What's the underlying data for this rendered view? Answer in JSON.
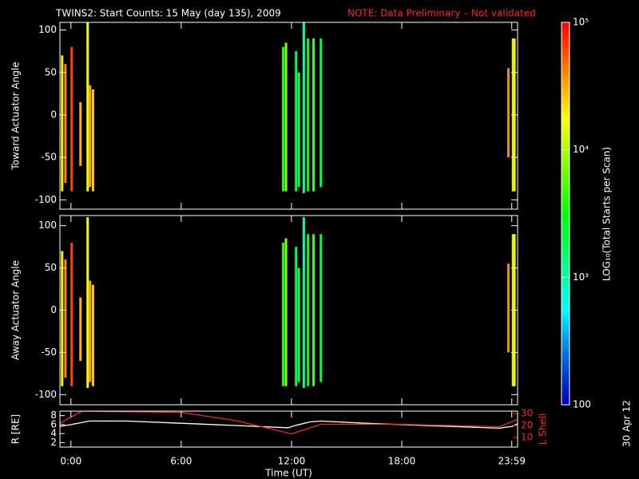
{
  "title": "TWINS2: Start Counts: 15 May (day 135), 2009",
  "note": "NOTE: Data Preliminary – Not validated",
  "date_stamp": "30 Apr 12",
  "colorbar": {
    "label": "LOG₁₀(Total Starts per Scan)",
    "log": true,
    "lim": [
      100,
      100000
    ],
    "ticks": [
      {
        "value": 100,
        "label": "100"
      },
      {
        "value": 1000,
        "label": "10³"
      },
      {
        "value": 10000,
        "label": "10⁴"
      },
      {
        "value": 100000,
        "label": "10⁵"
      }
    ]
  },
  "chart_data": [
    {
      "type": "spectrogram",
      "ylabel": "Toward Actuator Angle",
      "ylim": [
        -111,
        109
      ],
      "yticks": [
        -100,
        -50,
        0,
        50,
        100
      ],
      "streaks": [
        {
          "x": -0.48,
          "y": [
            -90,
            70
          ],
          "value": 20000
        },
        {
          "x": -0.3,
          "y": [
            -80,
            60
          ],
          "value": 40000
        },
        {
          "x": 0.04,
          "y": [
            -90,
            80
          ],
          "value": 63000
        },
        {
          "x": 0.52,
          "y": [
            -60,
            15
          ],
          "value": 30000
        },
        {
          "x": 0.91,
          "y": [
            -90,
            110
          ],
          "value": 16000
        },
        {
          "x": 1.04,
          "y": [
            -85,
            35
          ],
          "value": 32000
        },
        {
          "x": 1.2,
          "y": [
            -90,
            30
          ],
          "value": 25000
        },
        {
          "x": 11.55,
          "y": [
            -90,
            80
          ],
          "value": 4000
        },
        {
          "x": 11.7,
          "y": [
            -90,
            85
          ],
          "value": 8000
        },
        {
          "x": 12.25,
          "y": [
            -90,
            75
          ],
          "value": 2000
        },
        {
          "x": 12.4,
          "y": [
            -85,
            50
          ],
          "value": 1600
        },
        {
          "x": 12.67,
          "y": [
            -92,
            110
          ],
          "value": 1000
        },
        {
          "x": 12.9,
          "y": [
            -90,
            90
          ],
          "value": 2500
        },
        {
          "x": 13.2,
          "y": [
            -90,
            90
          ],
          "value": 5000
        },
        {
          "x": 13.6,
          "y": [
            -85,
            90
          ],
          "value": 2000
        },
        {
          "x": 23.8,
          "y": [
            -50,
            55
          ],
          "value": 40000
        },
        {
          "x": 24.05,
          "y": [
            -90,
            90
          ],
          "value": 12000
        },
        {
          "x": 24.13,
          "y": [
            -90,
            90
          ],
          "value": 20000
        }
      ]
    },
    {
      "type": "spectrogram",
      "ylabel": "Away Actuator Angle",
      "ylim": [
        -112,
        112
      ],
      "yticks": [
        -100,
        -50,
        0,
        50,
        100
      ],
      "streaks": [
        {
          "x": -0.48,
          "y": [
            -90,
            70
          ],
          "value": 20000
        },
        {
          "x": -0.3,
          "y": [
            -80,
            60
          ],
          "value": 40000
        },
        {
          "x": 0.04,
          "y": [
            -90,
            80
          ],
          "value": 63000
        },
        {
          "x": 0.52,
          "y": [
            -60,
            15
          ],
          "value": 30000
        },
        {
          "x": 0.91,
          "y": [
            -92,
            110
          ],
          "value": 16000
        },
        {
          "x": 1.04,
          "y": [
            -85,
            35
          ],
          "value": 32000
        },
        {
          "x": 1.2,
          "y": [
            -90,
            30
          ],
          "value": 25000
        },
        {
          "x": 11.55,
          "y": [
            -90,
            80
          ],
          "value": 4000
        },
        {
          "x": 11.7,
          "y": [
            -90,
            85
          ],
          "value": 8000
        },
        {
          "x": 12.25,
          "y": [
            -90,
            75
          ],
          "value": 2000
        },
        {
          "x": 12.4,
          "y": [
            -85,
            50
          ],
          "value": 1600
        },
        {
          "x": 12.67,
          "y": [
            -92,
            110
          ],
          "value": 1000
        },
        {
          "x": 12.9,
          "y": [
            -90,
            90
          ],
          "value": 2500
        },
        {
          "x": 13.2,
          "y": [
            -90,
            90
          ],
          "value": 5000
        },
        {
          "x": 13.6,
          "y": [
            -85,
            90
          ],
          "value": 2000
        },
        {
          "x": 23.8,
          "y": [
            -50,
            55
          ],
          "value": 40000
        },
        {
          "x": 24.05,
          "y": [
            -90,
            90
          ],
          "value": 12000
        },
        {
          "x": 24.13,
          "y": [
            -90,
            90
          ],
          "value": 20000
        }
      ]
    },
    {
      "type": "line",
      "ylabel": "R [RE]",
      "y2label": "L Shell",
      "xlabel": "Time (UT)",
      "xlim": [
        -0.6,
        24.3
      ],
      "xticks": [
        {
          "value": 0,
          "label": "0:00"
        },
        {
          "value": 6,
          "label": "6:00"
        },
        {
          "value": 12,
          "label": "12:00"
        },
        {
          "value": 18,
          "label": "18:00"
        },
        {
          "value": 23.983,
          "label": "23:59"
        }
      ],
      "ylim": [
        1,
        9
      ],
      "yticks": [
        2,
        4,
        6,
        8
      ],
      "y2lim": [
        2,
        32
      ],
      "y2ticks": [
        10,
        20,
        30
      ],
      "series": [
        {
          "name": "R",
          "color": "#ffffff",
          "x": [
            -0.6,
            0,
            1,
            3,
            6,
            9,
            11.8,
            12.3,
            13,
            13.6,
            16,
            20,
            23.3,
            24,
            24.3
          ],
          "values": [
            5.6,
            6.0,
            6.8,
            6.8,
            6.3,
            5.8,
            5.3,
            5.9,
            6.6,
            6.8,
            6.3,
            5.7,
            5.2,
            5.6,
            6.2
          ]
        },
        {
          "name": "L Shell",
          "color": "#ff2020",
          "axis": "y2",
          "x": [
            -0.6,
            0.6,
            6,
            9,
            12,
            13.6,
            18,
            23.3,
            24.3
          ],
          "values": [
            22,
            32,
            31,
            24,
            13,
            21,
            21,
            19,
            25
          ]
        }
      ]
    }
  ]
}
